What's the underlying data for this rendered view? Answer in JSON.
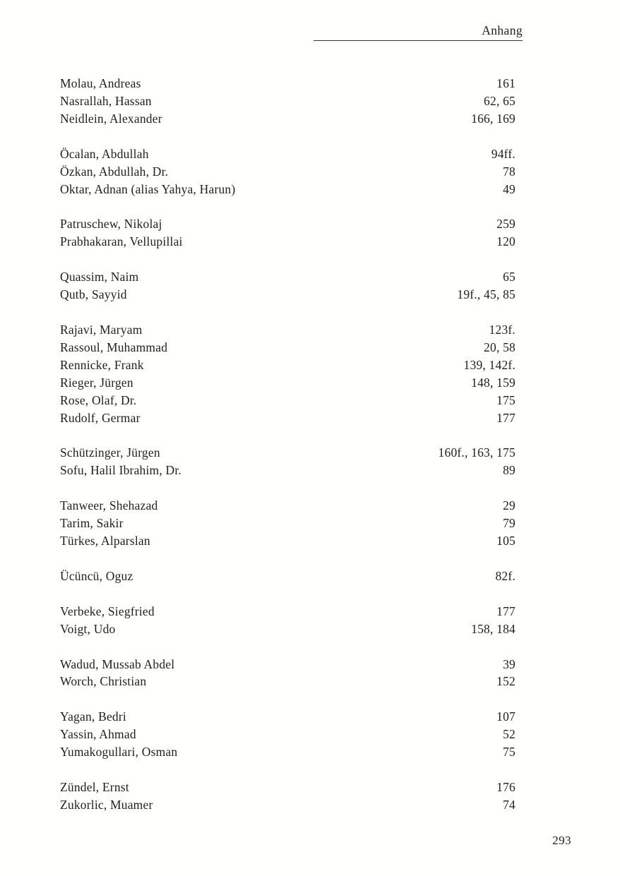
{
  "page": {
    "header": {
      "title": "Anhang"
    },
    "footer": {
      "page_number": "293"
    }
  },
  "index": {
    "groups": [
      {
        "entries": [
          {
            "name": "Molau, Andreas",
            "pages": "161"
          },
          {
            "name": "Nasrallah, Hassan",
            "pages": "62, 65"
          },
          {
            "name": "Neidlein, Alexander",
            "pages": "166, 169"
          }
        ]
      },
      {
        "entries": [
          {
            "name": "Öcalan, Abdullah",
            "pages": "94ff."
          },
          {
            "name": "Özkan, Abdullah, Dr.",
            "pages": "78"
          },
          {
            "name": "Oktar, Adnan (alias Yahya, Harun)",
            "pages": "49"
          }
        ]
      },
      {
        "entries": [
          {
            "name": "Patruschew, Nikolaj",
            "pages": "259"
          },
          {
            "name": "Prabhakaran, Vellupillai",
            "pages": "120"
          }
        ]
      },
      {
        "entries": [
          {
            "name": "Quassim, Naim",
            "pages": "65"
          },
          {
            "name": "Qutb, Sayyid",
            "pages": "19f., 45, 85"
          }
        ]
      },
      {
        "entries": [
          {
            "name": "Rajavi, Maryam",
            "pages": "123f."
          },
          {
            "name": "Rassoul, Muhammad",
            "pages": "20, 58"
          },
          {
            "name": "Rennicke, Frank",
            "pages": "139, 142f."
          },
          {
            "name": "Rieger, Jürgen",
            "pages": "148, 159"
          },
          {
            "name": "Rose, Olaf, Dr.",
            "pages": "175"
          },
          {
            "name": "Rudolf, Germar",
            "pages": "177"
          }
        ]
      },
      {
        "entries": [
          {
            "name": "Schützinger, Jürgen",
            "pages": "160f., 163, 175"
          },
          {
            "name": "Sofu, Halil Ibrahim, Dr.",
            "pages": "89"
          }
        ]
      },
      {
        "entries": [
          {
            "name": "Tanweer, Shehazad",
            "pages": "29"
          },
          {
            "name": "Tarim, Sakir",
            "pages": "79"
          },
          {
            "name": "Türkes, Alparslan",
            "pages": "105"
          }
        ]
      },
      {
        "entries": [
          {
            "name": "Ücüncü, Oguz",
            "pages": "82f."
          }
        ]
      },
      {
        "entries": [
          {
            "name": "Verbeke, Siegfried",
            "pages": "177"
          },
          {
            "name": "Voigt, Udo",
            "pages": "158, 184"
          }
        ]
      },
      {
        "entries": [
          {
            "name": "Wadud, Mussab Abdel",
            "pages": "39"
          },
          {
            "name": "Worch, Christian",
            "pages": "152"
          }
        ]
      },
      {
        "entries": [
          {
            "name": "Yagan, Bedri",
            "pages": "107"
          },
          {
            "name": "Yassin, Ahmad",
            "pages": "52"
          },
          {
            "name": "Yumakogullari, Osman",
            "pages": "75"
          }
        ]
      },
      {
        "entries": [
          {
            "name": "Zündel, Ernst",
            "pages": "176"
          },
          {
            "name": "Zukorlic, Muamer",
            "pages": "74"
          }
        ]
      }
    ]
  }
}
